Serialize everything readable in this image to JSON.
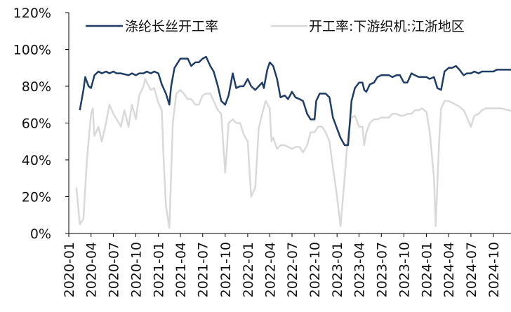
{
  "chart_data": {
    "type": "line",
    "title": "",
    "xlabel": "",
    "ylabel": "",
    "ylim": [
      0,
      120
    ],
    "y_ticks": [
      "0%",
      "20%",
      "40%",
      "60%",
      "80%",
      "100%",
      "120%"
    ],
    "y_tick_values": [
      0,
      20,
      40,
      60,
      80,
      100,
      120
    ],
    "x_ticks": [
      "2020-01",
      "2020-04",
      "2020-07",
      "2020-10",
      "2021-01",
      "2021-04",
      "2021-07",
      "2021-10",
      "2022-01",
      "2022-04",
      "2022-07",
      "2022-10",
      "2023-01",
      "2023-04",
      "2023-07",
      "2023-10",
      "2024-01",
      "2024-04",
      "2024-07",
      "2024-10"
    ],
    "xlim": [
      "2020-01",
      "2024-12"
    ],
    "grid": false,
    "legend": "top",
    "series": [
      {
        "name": "涤纶长丝开工率",
        "color": "#1f3d64",
        "points": [
          [
            "2020-02-15",
            67
          ],
          [
            "2020-03-01",
            78
          ],
          [
            "2020-03-08",
            85
          ],
          [
            "2020-03-22",
            80
          ],
          [
            "2020-04-01",
            79
          ],
          [
            "2020-04-15",
            86
          ],
          [
            "2020-05-01",
            88
          ],
          [
            "2020-05-15",
            87
          ],
          [
            "2020-06-01",
            88
          ],
          [
            "2020-06-15",
            87
          ],
          [
            "2020-07-01",
            88
          ],
          [
            "2020-07-15",
            87
          ],
          [
            "2020-08-01",
            87
          ],
          [
            "2020-09-01",
            86
          ],
          [
            "2020-09-15",
            87
          ],
          [
            "2020-10-01",
            86
          ],
          [
            "2020-10-15",
            87
          ],
          [
            "2020-11-01",
            87
          ],
          [
            "2020-11-15",
            88
          ],
          [
            "2020-12-01",
            87
          ],
          [
            "2020-12-15",
            88
          ],
          [
            "2021-01-01",
            87
          ],
          [
            "2021-01-15",
            81
          ],
          [
            "2021-02-01",
            76
          ],
          [
            "2021-02-15",
            70
          ],
          [
            "2021-02-22",
            80
          ],
          [
            "2021-03-08",
            90
          ],
          [
            "2021-04-01",
            95
          ],
          [
            "2021-04-15",
            95
          ],
          [
            "2021-05-01",
            95
          ],
          [
            "2021-05-15",
            91
          ],
          [
            "2021-06-01",
            93
          ],
          [
            "2021-06-15",
            93
          ],
          [
            "2021-07-01",
            95
          ],
          [
            "2021-07-15",
            96
          ],
          [
            "2021-08-01",
            91
          ],
          [
            "2021-08-15",
            88
          ],
          [
            "2021-09-01",
            80
          ],
          [
            "2021-09-15",
            72
          ],
          [
            "2021-10-01",
            70
          ],
          [
            "2021-10-15",
            75
          ],
          [
            "2021-11-01",
            87
          ],
          [
            "2021-11-15",
            79
          ],
          [
            "2021-12-01",
            80
          ],
          [
            "2021-12-15",
            80
          ],
          [
            "2022-01-01",
            84
          ],
          [
            "2022-01-15",
            80
          ],
          [
            "2022-02-01",
            78
          ],
          [
            "2022-02-15",
            80
          ],
          [
            "2022-03-01",
            82
          ],
          [
            "2022-03-08",
            79
          ],
          [
            "2022-03-22",
            89
          ],
          [
            "2022-04-01",
            93
          ],
          [
            "2022-04-15",
            91
          ],
          [
            "2022-05-01",
            84
          ],
          [
            "2022-05-15",
            74
          ],
          [
            "2022-06-01",
            75
          ],
          [
            "2022-06-15",
            73
          ],
          [
            "2022-07-01",
            77
          ],
          [
            "2022-07-15",
            74
          ],
          [
            "2022-08-01",
            73
          ],
          [
            "2022-08-15",
            72
          ],
          [
            "2022-09-01",
            65
          ],
          [
            "2022-09-15",
            62
          ],
          [
            "2022-10-01",
            62
          ],
          [
            "2022-10-08",
            72
          ],
          [
            "2022-10-22",
            76
          ],
          [
            "2022-11-15",
            76
          ],
          [
            "2022-12-01",
            74
          ],
          [
            "2022-12-15",
            63
          ],
          [
            "2023-01-01",
            57
          ],
          [
            "2023-01-15",
            52
          ],
          [
            "2023-02-01",
            48
          ],
          [
            "2023-02-15",
            48
          ],
          [
            "2023-03-01",
            72
          ],
          [
            "2023-03-15",
            79
          ],
          [
            "2023-04-01",
            82
          ],
          [
            "2023-04-15",
            82
          ],
          [
            "2023-04-22",
            78
          ],
          [
            "2023-05-01",
            77
          ],
          [
            "2023-05-15",
            81
          ],
          [
            "2023-06-01",
            82
          ],
          [
            "2023-06-15",
            85
          ],
          [
            "2023-07-01",
            86
          ],
          [
            "2023-08-01",
            86
          ],
          [
            "2023-08-15",
            85
          ],
          [
            "2023-09-01",
            86
          ],
          [
            "2023-09-15",
            86
          ],
          [
            "2023-10-01",
            82
          ],
          [
            "2023-10-15",
            82
          ],
          [
            "2023-11-01",
            87
          ],
          [
            "2023-11-15",
            86
          ],
          [
            "2023-12-01",
            85
          ],
          [
            "2023-12-15",
            85
          ],
          [
            "2024-01-01",
            85
          ],
          [
            "2024-01-15",
            84
          ],
          [
            "2024-02-01",
            85
          ],
          [
            "2024-02-15",
            79
          ],
          [
            "2024-03-01",
            78
          ],
          [
            "2024-03-15",
            88
          ],
          [
            "2024-04-01",
            90
          ],
          [
            "2024-04-15",
            90
          ],
          [
            "2024-05-01",
            91
          ],
          [
            "2024-05-15",
            89
          ],
          [
            "2024-06-01",
            86
          ],
          [
            "2024-06-15",
            87
          ],
          [
            "2024-07-01",
            87
          ],
          [
            "2024-07-15",
            88
          ],
          [
            "2024-08-01",
            87
          ],
          [
            "2024-08-15",
            88
          ],
          [
            "2024-09-01",
            88
          ],
          [
            "2024-10-01",
            88
          ],
          [
            "2024-10-15",
            89
          ],
          [
            "2024-11-01",
            89
          ],
          [
            "2024-12-01",
            89
          ],
          [
            "2024-12-31",
            89
          ]
        ]
      },
      {
        "name": "开工率:下游织机:江浙地区",
        "color": "#d9d9d9",
        "points": [
          [
            "2020-02-01",
            25
          ],
          [
            "2020-02-15",
            5
          ],
          [
            "2020-03-01",
            8
          ],
          [
            "2020-03-15",
            40
          ],
          [
            "2020-04-01",
            65
          ],
          [
            "2020-04-08",
            68
          ],
          [
            "2020-04-15",
            53
          ],
          [
            "2020-05-01",
            58
          ],
          [
            "2020-05-15",
            50
          ],
          [
            "2020-06-01",
            60
          ],
          [
            "2020-06-15",
            70
          ],
          [
            "2020-07-01",
            65
          ],
          [
            "2020-07-15",
            62
          ],
          [
            "2020-08-01",
            58
          ],
          [
            "2020-08-15",
            67
          ],
          [
            "2020-09-01",
            58
          ],
          [
            "2020-09-15",
            70
          ],
          [
            "2020-10-01",
            62
          ],
          [
            "2020-10-15",
            75
          ],
          [
            "2020-11-01",
            80
          ],
          [
            "2020-11-08",
            84
          ],
          [
            "2020-11-15",
            82
          ],
          [
            "2020-12-01",
            78
          ],
          [
            "2020-12-15",
            79
          ],
          [
            "2021-01-01",
            71
          ],
          [
            "2021-01-15",
            67
          ],
          [
            "2021-01-22",
            42
          ],
          [
            "2021-02-01",
            15
          ],
          [
            "2021-02-15",
            3
          ],
          [
            "2021-03-01",
            60
          ],
          [
            "2021-03-15",
            76
          ],
          [
            "2021-04-01",
            78
          ],
          [
            "2021-04-15",
            76
          ],
          [
            "2021-05-01",
            73
          ],
          [
            "2021-05-15",
            73
          ],
          [
            "2021-06-01",
            70
          ],
          [
            "2021-06-15",
            70
          ],
          [
            "2021-07-01",
            75
          ],
          [
            "2021-07-15",
            76
          ],
          [
            "2021-08-01",
            76
          ],
          [
            "2021-08-15",
            72
          ],
          [
            "2021-09-01",
            67
          ],
          [
            "2021-09-15",
            65
          ],
          [
            "2021-10-01",
            33
          ],
          [
            "2021-10-15",
            60
          ],
          [
            "2021-11-01",
            62
          ],
          [
            "2021-11-15",
            60
          ],
          [
            "2021-12-01",
            60
          ],
          [
            "2021-12-15",
            54
          ],
          [
            "2022-01-01",
            50
          ],
          [
            "2022-01-15",
            20
          ],
          [
            "2022-02-01",
            25
          ],
          [
            "2022-02-15",
            57
          ],
          [
            "2022-03-01",
            65
          ],
          [
            "2022-03-15",
            72
          ],
          [
            "2022-04-01",
            68
          ],
          [
            "2022-04-08",
            50
          ],
          [
            "2022-04-15",
            52
          ],
          [
            "2022-05-01",
            46
          ],
          [
            "2022-05-15",
            48
          ],
          [
            "2022-06-01",
            48
          ],
          [
            "2022-06-15",
            47
          ],
          [
            "2022-07-01",
            46
          ],
          [
            "2022-07-15",
            47
          ],
          [
            "2022-08-01",
            47
          ],
          [
            "2022-08-15",
            44
          ],
          [
            "2022-09-01",
            48
          ],
          [
            "2022-09-15",
            55
          ],
          [
            "2022-10-01",
            55
          ],
          [
            "2022-10-15",
            58
          ],
          [
            "2022-11-01",
            58
          ],
          [
            "2022-11-15",
            55
          ],
          [
            "2022-12-01",
            50
          ],
          [
            "2022-12-15",
            36
          ],
          [
            "2023-01-01",
            20
          ],
          [
            "2023-01-15",
            4
          ],
          [
            "2023-02-01",
            30
          ],
          [
            "2023-02-15",
            55
          ],
          [
            "2023-03-01",
            63
          ],
          [
            "2023-03-15",
            64
          ],
          [
            "2023-04-01",
            58
          ],
          [
            "2023-04-15",
            58
          ],
          [
            "2023-04-22",
            48
          ],
          [
            "2023-05-01",
            55
          ],
          [
            "2023-05-15",
            60
          ],
          [
            "2023-06-01",
            62
          ],
          [
            "2023-06-15",
            62
          ],
          [
            "2023-07-01",
            63
          ],
          [
            "2023-08-01",
            63
          ],
          [
            "2023-08-15",
            65
          ],
          [
            "2023-09-01",
            65
          ],
          [
            "2023-09-15",
            64
          ],
          [
            "2023-10-01",
            64
          ],
          [
            "2023-10-15",
            65
          ],
          [
            "2023-11-01",
            65
          ],
          [
            "2023-11-15",
            67
          ],
          [
            "2023-12-01",
            67
          ],
          [
            "2023-12-15",
            68
          ],
          [
            "2024-01-01",
            66
          ],
          [
            "2024-01-15",
            55
          ],
          [
            "2024-02-01",
            30
          ],
          [
            "2024-02-08",
            4
          ],
          [
            "2024-02-22",
            50
          ],
          [
            "2024-03-01",
            68
          ],
          [
            "2024-03-15",
            72
          ],
          [
            "2024-04-01",
            72
          ],
          [
            "2024-04-15",
            71
          ],
          [
            "2024-05-01",
            70
          ],
          [
            "2024-05-15",
            69
          ],
          [
            "2024-06-01",
            67
          ],
          [
            "2024-06-15",
            63
          ],
          [
            "2024-07-01",
            58
          ],
          [
            "2024-07-15",
            64
          ],
          [
            "2024-08-01",
            65
          ],
          [
            "2024-08-15",
            67
          ],
          [
            "2024-09-01",
            68
          ],
          [
            "2024-10-01",
            68
          ],
          [
            "2024-11-01",
            68
          ],
          [
            "2024-12-01",
            67
          ],
          [
            "2024-12-31",
            66
          ]
        ]
      }
    ]
  }
}
